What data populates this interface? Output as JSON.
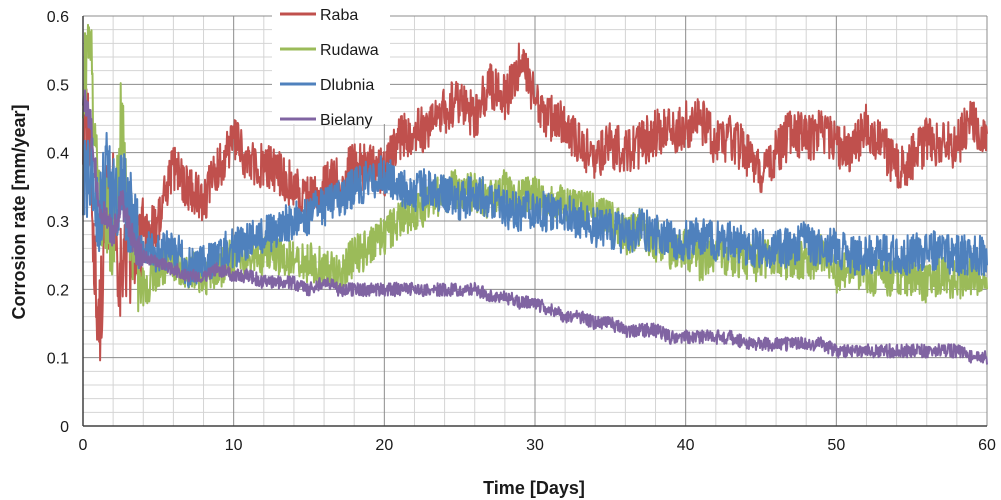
{
  "chart_data": {
    "type": "line",
    "xlabel": "Time [Days]",
    "ylabel": "Corrosion rate  [mm/year]",
    "xlim": [
      0,
      60
    ],
    "ylim": [
      0,
      0.6
    ],
    "x_ticks": [
      0,
      10,
      20,
      30,
      40,
      50,
      60
    ],
    "y_ticks": [
      "0",
      "0.1",
      "0.2",
      "0.3",
      "0.4",
      "0.5",
      "0.6"
    ],
    "grid": true,
    "legend_position": "top-center",
    "x": [
      0,
      0.5,
      1,
      1.5,
      2,
      2.5,
      3,
      3.5,
      4,
      5,
      6,
      7,
      8,
      9,
      10,
      11,
      12,
      13,
      14,
      15,
      16,
      17,
      18,
      19,
      20,
      21,
      22,
      23,
      24,
      25,
      26,
      27,
      28,
      29,
      30,
      31,
      32,
      33,
      34,
      35,
      36,
      37,
      38,
      39,
      40,
      41,
      42,
      43,
      44,
      45,
      46,
      47,
      48,
      49,
      50,
      51,
      52,
      53,
      54,
      55,
      56,
      57,
      58,
      59,
      60
    ],
    "series": [
      {
        "name": "Raba",
        "color": "#c0504d",
        "values": [
          0.45,
          0.4,
          0.12,
          0.3,
          0.33,
          0.22,
          0.25,
          0.26,
          0.28,
          0.3,
          0.38,
          0.35,
          0.33,
          0.38,
          0.42,
          0.38,
          0.38,
          0.37,
          0.35,
          0.33,
          0.35,
          0.36,
          0.38,
          0.38,
          0.37,
          0.42,
          0.43,
          0.44,
          0.46,
          0.48,
          0.45,
          0.5,
          0.48,
          0.53,
          0.48,
          0.45,
          0.44,
          0.41,
          0.39,
          0.41,
          0.4,
          0.41,
          0.43,
          0.43,
          0.44,
          0.45,
          0.41,
          0.42,
          0.4,
          0.37,
          0.4,
          0.43,
          0.42,
          0.43,
          0.41,
          0.4,
          0.44,
          0.41,
          0.38,
          0.39,
          0.42,
          0.41,
          0.41,
          0.45,
          0.41
        ]
      },
      {
        "name": "Rudawa",
        "color": "#9bbb59",
        "values": [
          0.5,
          0.55,
          0.35,
          0.3,
          0.28,
          0.45,
          0.32,
          0.25,
          0.2,
          0.23,
          0.24,
          0.23,
          0.22,
          0.23,
          0.25,
          0.24,
          0.25,
          0.25,
          0.24,
          0.24,
          0.23,
          0.22,
          0.25,
          0.26,
          0.28,
          0.3,
          0.31,
          0.33,
          0.34,
          0.35,
          0.34,
          0.33,
          0.35,
          0.33,
          0.34,
          0.32,
          0.33,
          0.32,
          0.31,
          0.3,
          0.28,
          0.29,
          0.27,
          0.26,
          0.26,
          0.24,
          0.25,
          0.25,
          0.24,
          0.24,
          0.25,
          0.24,
          0.24,
          0.25,
          0.22,
          0.23,
          0.22,
          0.22,
          0.22,
          0.22,
          0.21,
          0.22,
          0.21,
          0.22,
          0.2
        ]
      },
      {
        "name": "Dlubnia",
        "color": "#4f81bd",
        "values": [
          0.35,
          0.38,
          0.3,
          0.37,
          0.33,
          0.35,
          0.32,
          0.28,
          0.26,
          0.25,
          0.26,
          0.23,
          0.24,
          0.25,
          0.26,
          0.27,
          0.28,
          0.29,
          0.3,
          0.31,
          0.32,
          0.33,
          0.35,
          0.36,
          0.37,
          0.35,
          0.34,
          0.35,
          0.34,
          0.33,
          0.34,
          0.33,
          0.32,
          0.31,
          0.32,
          0.31,
          0.31,
          0.3,
          0.29,
          0.29,
          0.28,
          0.29,
          0.28,
          0.27,
          0.27,
          0.28,
          0.27,
          0.27,
          0.26,
          0.26,
          0.26,
          0.26,
          0.27,
          0.26,
          0.26,
          0.25,
          0.25,
          0.25,
          0.25,
          0.25,
          0.26,
          0.25,
          0.25,
          0.25,
          0.25
        ]
      },
      {
        "name": "Bielany",
        "color": "#8064a2",
        "values": [
          0.48,
          0.45,
          0.33,
          0.3,
          0.28,
          0.33,
          0.3,
          0.26,
          0.25,
          0.24,
          0.23,
          0.22,
          0.22,
          0.23,
          0.22,
          0.22,
          0.21,
          0.21,
          0.21,
          0.2,
          0.21,
          0.2,
          0.2,
          0.2,
          0.2,
          0.2,
          0.2,
          0.2,
          0.2,
          0.2,
          0.2,
          0.19,
          0.19,
          0.18,
          0.18,
          0.17,
          0.16,
          0.16,
          0.15,
          0.15,
          0.14,
          0.14,
          0.14,
          0.13,
          0.13,
          0.13,
          0.13,
          0.13,
          0.12,
          0.12,
          0.12,
          0.12,
          0.12,
          0.12,
          0.11,
          0.11,
          0.11,
          0.11,
          0.11,
          0.11,
          0.11,
          0.11,
          0.11,
          0.1,
          0.1
        ]
      }
    ]
  }
}
